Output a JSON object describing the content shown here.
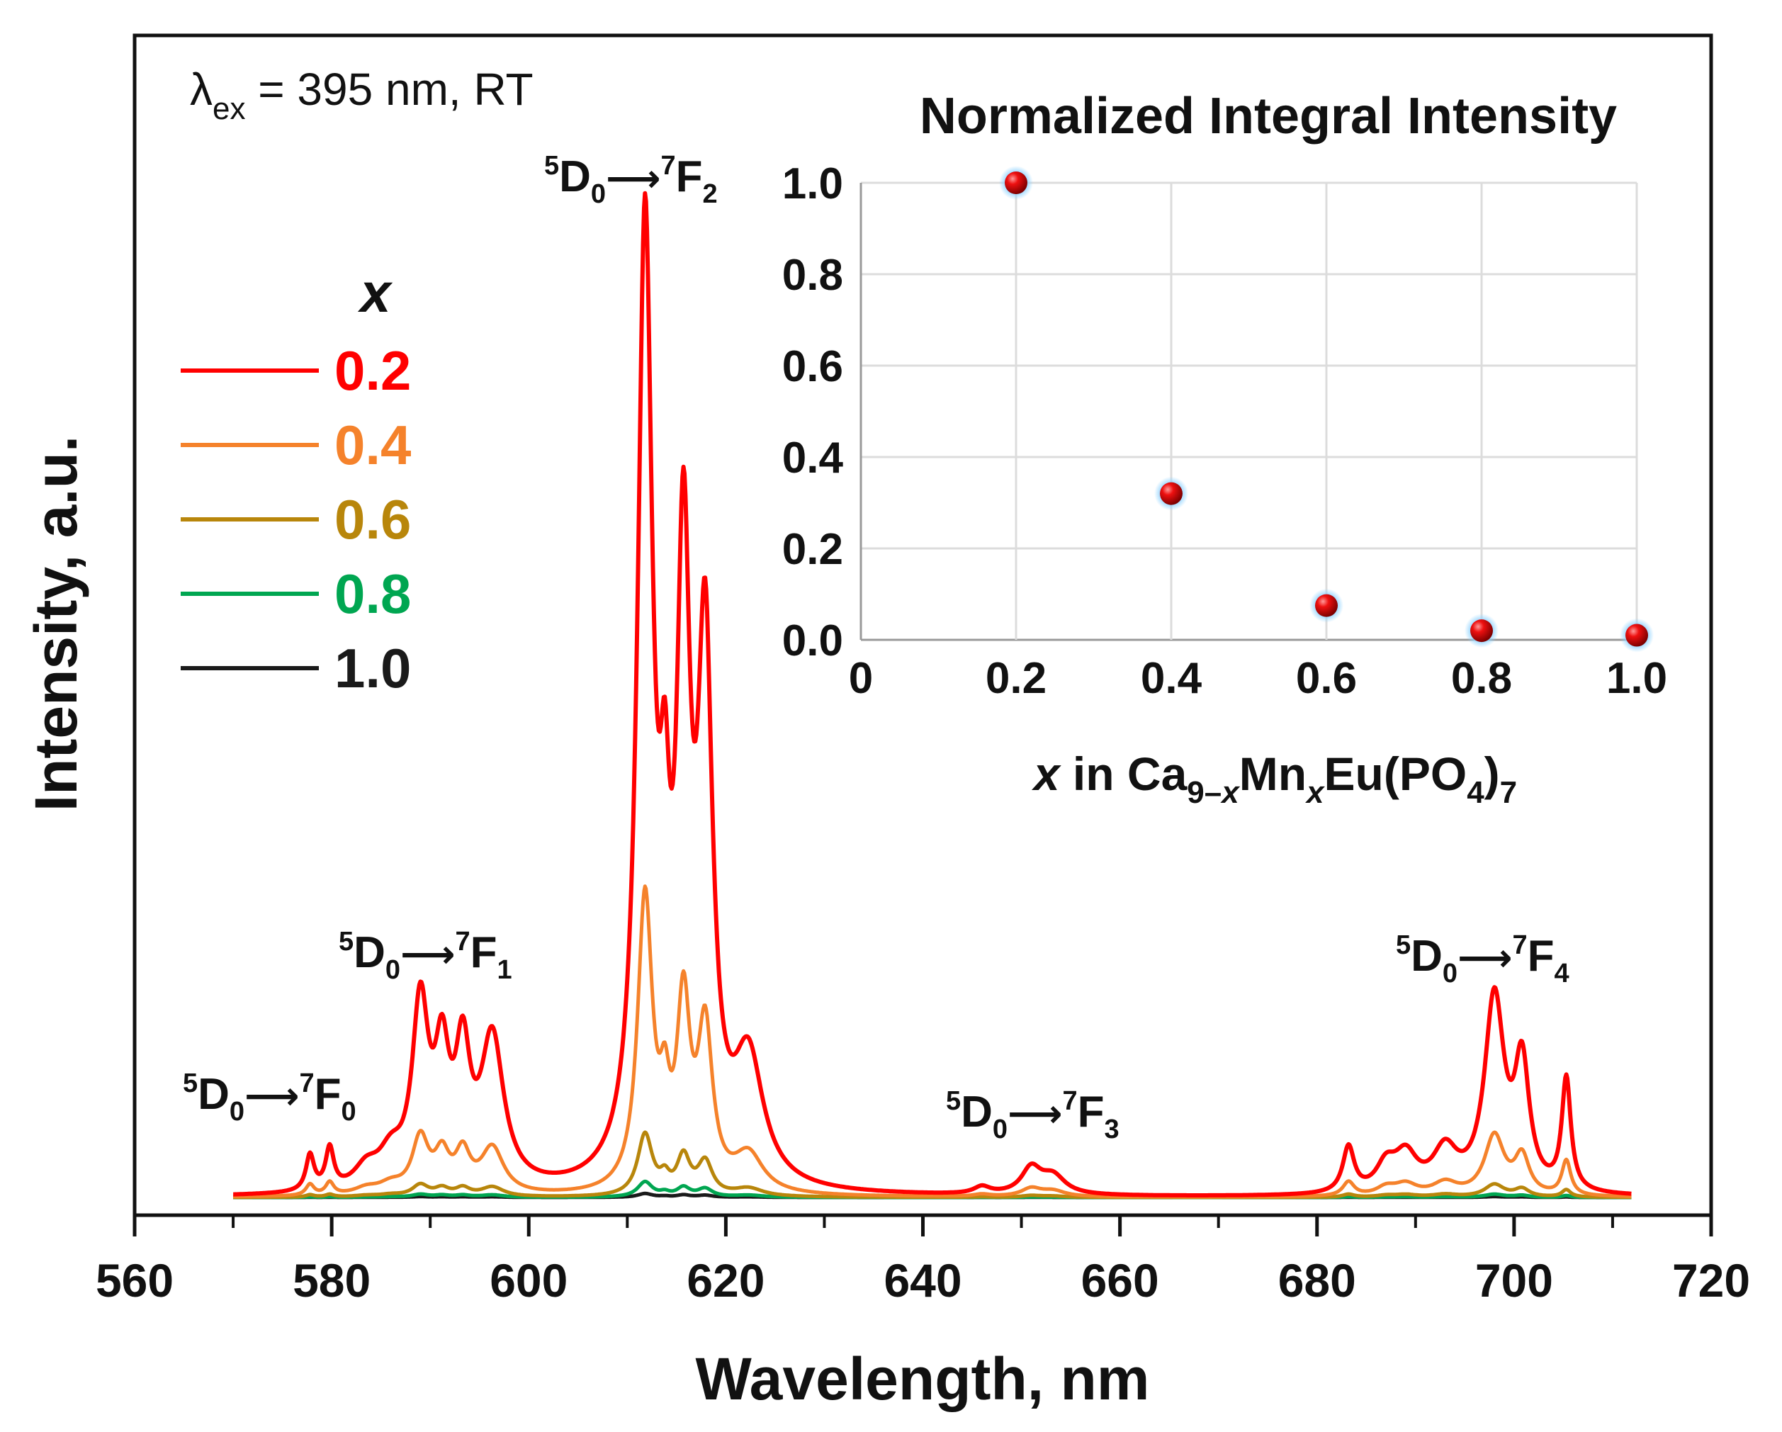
{
  "chart_data": [
    {
      "type": "line",
      "title": "",
      "xlabel": "Wavelength, nm",
      "ylabel": "Intensity, a.u.",
      "xlim": [
        560,
        720
      ],
      "ylim": [
        0,
        1.05
      ],
      "x_ticks": [
        560,
        580,
        600,
        620,
        640,
        660,
        680,
        700,
        720
      ],
      "grid": false,
      "excitation_label": {
        "lambda": "λ",
        "sub": "ex",
        "rest": " = 395 nm, RT"
      },
      "legend": {
        "title": "x",
        "position": "upper-left",
        "entries": [
          {
            "label": "0.2",
            "color": "#ff0000"
          },
          {
            "label": "0.4",
            "color": "#f5822b"
          },
          {
            "label": "0.6",
            "color": "#b8860b"
          },
          {
            "label": "0.8",
            "color": "#00a651"
          },
          {
            "label": "1.0",
            "color": "#1a1a1a"
          }
        ]
      },
      "annotations": [
        {
          "id": "f0",
          "d": "D",
          "f": "F",
          "pre": "5",
          "dsub": "0",
          "arrow": "⟶",
          "fsup": "7",
          "fsub": "0"
        },
        {
          "id": "f1",
          "d": "D",
          "f": "F",
          "pre": "5",
          "dsub": "0",
          "arrow": "⟶",
          "fsup": "7",
          "fsub": "1"
        },
        {
          "id": "f2",
          "d": "D",
          "f": "F",
          "pre": "5",
          "dsub": "0",
          "arrow": "⟶",
          "fsup": "7",
          "fsub": "2"
        },
        {
          "id": "f3",
          "d": "D",
          "f": "F",
          "pre": "5",
          "dsub": "0",
          "arrow": "⟶",
          "fsup": "7",
          "fsub": "3"
        },
        {
          "id": "f4",
          "d": "D",
          "f": "F",
          "pre": "5",
          "dsub": "0",
          "arrow": "⟶",
          "fsup": "7",
          "fsub": "4"
        }
      ],
      "x_range": [
        570,
        712
      ],
      "series": [
        {
          "name": "0.2",
          "color": "#ff0000",
          "scale": 1.0
        },
        {
          "name": "0.4",
          "color": "#f5822b",
          "scale": 0.31
        },
        {
          "name": "0.6",
          "color": "#b8860b",
          "scale": 0.065
        },
        {
          "name": "0.8",
          "color": "#00a651",
          "scale": 0.016
        },
        {
          "name": "1.0",
          "color": "#1a1a1a",
          "scale": 0.004
        }
      ],
      "base_spectrum_x2": {
        "note": "x = 0.2 emission profile, relative intensity",
        "peaks": [
          {
            "center": 577.8,
            "height": 0.035,
            "width": 0.5
          },
          {
            "center": 579.8,
            "height": 0.04,
            "width": 0.5
          },
          {
            "center": 583.5,
            "height": 0.02,
            "width": 1.5
          },
          {
            "center": 586.0,
            "height": 0.03,
            "width": 1.5
          },
          {
            "center": 589.0,
            "height": 0.175,
            "width": 1.0
          },
          {
            "center": 591.2,
            "height": 0.115,
            "width": 0.9
          },
          {
            "center": 593.3,
            "height": 0.12,
            "width": 0.9
          },
          {
            "center": 596.3,
            "height": 0.145,
            "width": 1.4
          },
          {
            "center": 611.8,
            "height": 0.93,
            "width": 0.9
          },
          {
            "center": 613.8,
            "height": 0.22,
            "width": 0.6
          },
          {
            "center": 615.7,
            "height": 0.57,
            "width": 0.8
          },
          {
            "center": 617.9,
            "height": 0.5,
            "width": 0.9
          },
          {
            "center": 622.3,
            "height": 0.12,
            "width": 1.8
          },
          {
            "center": 646.0,
            "height": 0.007,
            "width": 1.0
          },
          {
            "center": 651.0,
            "height": 0.025,
            "width": 1.2
          },
          {
            "center": 653.2,
            "height": 0.018,
            "width": 1.5
          },
          {
            "center": 683.2,
            "height": 0.045,
            "width": 0.7
          },
          {
            "center": 687.0,
            "height": 0.025,
            "width": 1.2
          },
          {
            "center": 689.0,
            "height": 0.035,
            "width": 1.4
          },
          {
            "center": 693.0,
            "height": 0.04,
            "width": 1.5
          },
          {
            "center": 698.0,
            "height": 0.19,
            "width": 1.2
          },
          {
            "center": 700.8,
            "height": 0.12,
            "width": 0.9
          },
          {
            "center": 705.3,
            "height": 0.11,
            "width": 0.55
          }
        ]
      }
    },
    {
      "type": "scatter",
      "title": "Normalized Integral Intensity",
      "xlabel": {
        "italic_x": "x",
        "text1": " in Ca",
        "sub1a": "9–",
        "sub1b": "x",
        "text2": "Mn",
        "sub2": "x",
        "text3": "Eu(PO",
        "sub3": "4",
        "text4": ")",
        "sub4": "7"
      },
      "ylabel": "",
      "xlim": [
        0,
        1.0
      ],
      "ylim": [
        0,
        1.0
      ],
      "x_ticks": [
        {
          "v": 0,
          "l": "0"
        },
        {
          "v": 0.2,
          "l": "0.2"
        },
        {
          "v": 0.4,
          "l": "0.4"
        },
        {
          "v": 0.6,
          "l": "0.6"
        },
        {
          "v": 0.8,
          "l": "0.8"
        },
        {
          "v": 1.0,
          "l": "1.0"
        }
      ],
      "y_ticks": [
        {
          "v": 0,
          "l": "0.0"
        },
        {
          "v": 0.2,
          "l": "0.2"
        },
        {
          "v": 0.4,
          "l": "0.4"
        },
        {
          "v": 0.6,
          "l": "0.6"
        },
        {
          "v": 0.8,
          "l": "0.8"
        },
        {
          "v": 1.0,
          "l": "1.0"
        }
      ],
      "grid": true,
      "x": [
        0.2,
        0.4,
        0.6,
        0.8,
        1.0
      ],
      "y": [
        1.0,
        0.32,
        0.075,
        0.02,
        0.01
      ],
      "marker_color": "#e0000a"
    }
  ]
}
